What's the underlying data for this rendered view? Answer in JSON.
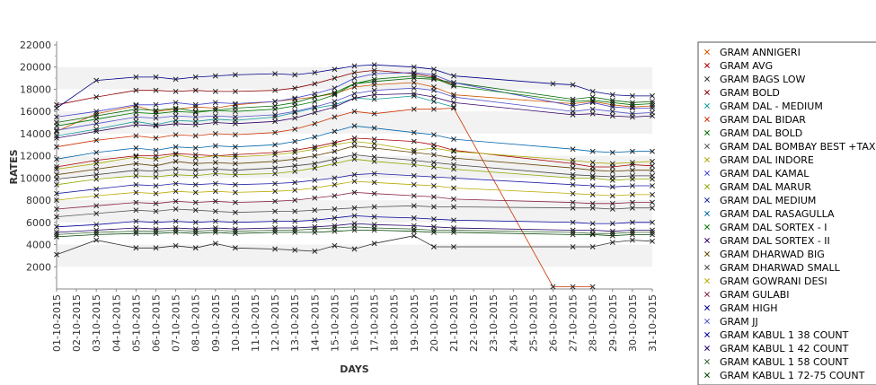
{
  "chart_data": {
    "type": "line",
    "xlabel": "DAYS",
    "ylabel": "RATES",
    "ylim": [
      0,
      22000
    ],
    "yticks": [
      2000,
      4000,
      6000,
      8000,
      10000,
      12000,
      14000,
      16000,
      18000,
      20000,
      22000
    ],
    "grid": "alternating horizontal bands",
    "legend_position": "right",
    "categories": [
      "01-10-2015",
      "02-10-2015",
      "03-10-2015",
      "04-10-2015",
      "05-10-2015",
      "06-10-2015",
      "07-10-2015",
      "08-10-2015",
      "09-10-2015",
      "10-10-2015",
      "11-10-2015",
      "12-10-2015",
      "13-10-2015",
      "14-10-2015",
      "15-10-2015",
      "16-10-2015",
      "17-10-2015",
      "18-10-2015",
      "19-10-2015",
      "20-10-2015",
      "21-10-2015",
      "22-10-2015",
      "23-10-2015",
      "24-10-2015",
      "25-10-2015",
      "26-10-2015",
      "27-10-2015",
      "28-10-2015",
      "29-10-2015",
      "30-10-2015",
      "31-10-2015"
    ],
    "series": [
      {
        "name": "GRAM ANNIGERI",
        "color": "#cc5500",
        "values": [
          14200,
          null,
          15800,
          null,
          16500,
          16000,
          16200,
          16400,
          16300,
          16600,
          null,
          16900,
          17100,
          17300,
          17600,
          18200,
          18400,
          null,
          18600,
          18200,
          17500,
          null,
          null,
          null,
          null,
          null,
          16700,
          16900,
          16600,
          16400,
          16500
        ]
      },
      {
        "name": "GRAM AVG",
        "color": "#aa0000",
        "values": [
          11000,
          null,
          11600,
          null,
          12000,
          12000,
          12200,
          12100,
          12000,
          12100,
          null,
          12300,
          12500,
          12800,
          13200,
          13600,
          13500,
          null,
          13300,
          13000,
          12500,
          null,
          null,
          null,
          null,
          null,
          11300,
          11000,
          11000,
          11200,
          11100
        ]
      },
      {
        "name": "GRAM BAGS LOW",
        "color": "#333333",
        "values": [
          3100,
          null,
          4400,
          null,
          3700,
          3700,
          3900,
          3700,
          4100,
          3700,
          null,
          3600,
          3500,
          3400,
          3900,
          3600,
          4100,
          null,
          4800,
          3800,
          3800,
          null,
          null,
          null,
          null,
          null,
          3800,
          3800,
          4200,
          4400,
          4300
        ]
      },
      {
        "name": "GRAM BOLD",
        "color": "#880000",
        "values": [
          16600,
          null,
          17300,
          null,
          17900,
          17900,
          17800,
          17900,
          17800,
          17800,
          null,
          17900,
          18100,
          18500,
          19000,
          19500,
          19700,
          null,
          19400,
          19100,
          18400,
          null,
          null,
          null,
          null,
          null,
          null,
          null,
          null,
          null,
          null
        ]
      },
      {
        "name": "GRAM DAL - MEDIUM",
        "color": "#119999",
        "values": [
          13800,
          null,
          14400,
          null,
          15100,
          14800,
          15200,
          15100,
          15300,
          15200,
          null,
          15500,
          15900,
          16300,
          16600,
          17200,
          17100,
          null,
          17400,
          16900,
          16400,
          null,
          null,
          null,
          null,
          null,
          null,
          null,
          null,
          null,
          null
        ]
      },
      {
        "name": "GRAM DAL BIDAR",
        "color": "#cc3300",
        "values": [
          12800,
          null,
          13400,
          null,
          13800,
          13600,
          13900,
          13800,
          14000,
          13900,
          null,
          14100,
          14400,
          14900,
          15500,
          16000,
          15800,
          null,
          16200,
          16200,
          16300,
          null,
          null,
          null,
          null,
          200,
          200,
          200,
          null,
          null,
          null
        ]
      },
      {
        "name": "GRAM DAL BOLD",
        "color": "#006600",
        "values": [
          15000,
          null,
          15600,
          null,
          16200,
          16100,
          16300,
          16000,
          16100,
          16300,
          null,
          16500,
          16800,
          17300,
          17700,
          18500,
          18700,
          null,
          19000,
          18900,
          18600,
          null,
          null,
          null,
          null,
          null,
          17100,
          17300,
          17000,
          16800,
          16900
        ]
      },
      {
        "name": "GRAM DAL BOMBAY BEST +TAX",
        "color": "#555555",
        "values": [
          6500,
          null,
          6800,
          null,
          7100,
          7000,
          7200,
          7100,
          7000,
          6900,
          null,
          7000,
          7000,
          7100,
          7200,
          7300,
          7400,
          null,
          7500,
          7400,
          7400,
          null,
          null,
          null,
          null,
          null,
          7300,
          7300,
          7200,
          7300,
          7300
        ]
      },
      {
        "name": "GRAM DAL INDORE",
        "color": "#aaaa00",
        "values": [
          10800,
          null,
          11300,
          null,
          11900,
          11700,
          12100,
          11800,
          12000,
          11900,
          null,
          12100,
          12300,
          12600,
          13000,
          13300,
          13100,
          null,
          12500,
          12700,
          12400,
          null,
          null,
          null,
          null,
          null,
          11600,
          11400,
          11300,
          11400,
          11500
        ]
      },
      {
        "name": "GRAM DAL KAMAL",
        "color": "#4444cc",
        "values": [
          15500,
          null,
          16000,
          null,
          16600,
          16600,
          16800,
          16600,
          16800,
          16700,
          null,
          16900,
          17200,
          17600,
          18100,
          19000,
          19400,
          null,
          19500,
          19300,
          18600,
          null,
          null,
          null,
          null,
          null,
          16500,
          16800,
          16400,
          16300,
          16300
        ]
      },
      {
        "name": "GRAM DAL MARUR",
        "color": "#88aa00",
        "values": [
          9400,
          null,
          9900,
          null,
          10200,
          10100,
          10300,
          10200,
          10400,
          10300,
          null,
          10400,
          10600,
          10900,
          11300,
          11700,
          11500,
          null,
          11200,
          11000,
          10800,
          null,
          null,
          null,
          null,
          null,
          10000,
          10000,
          9800,
          9900,
          9900
        ]
      },
      {
        "name": "GRAM DAL MEDIUM",
        "color": "#2222aa",
        "values": [
          8600,
          null,
          9000,
          null,
          9400,
          9300,
          9500,
          9400,
          9500,
          9400,
          null,
          9500,
          9600,
          9800,
          10000,
          10300,
          10400,
          null,
          10200,
          10100,
          10000,
          null,
          null,
          null,
          null,
          null,
          9400,
          9300,
          9200,
          9300,
          9300
        ]
      },
      {
        "name": "GRAM DAL RASAGULLA",
        "color": "#0066aa",
        "values": [
          11700,
          null,
          12300,
          null,
          12700,
          12500,
          12800,
          12700,
          12900,
          12800,
          null,
          13000,
          13300,
          13700,
          14200,
          14700,
          14500,
          null,
          14100,
          13900,
          13500,
          null,
          null,
          null,
          null,
          null,
          12600,
          12400,
          12300,
          12400,
          12400
        ]
      },
      {
        "name": "GRAM DAL SORTEX - I",
        "color": "#007700",
        "values": [
          14700,
          null,
          15300,
          null,
          15900,
          15800,
          16000,
          15900,
          16100,
          16000,
          null,
          16200,
          16500,
          16900,
          17500,
          18500,
          18900,
          null,
          19200,
          19000,
          18300,
          null,
          null,
          null,
          null,
          null,
          16900,
          17000,
          16800,
          16600,
          16700
        ]
      },
      {
        "name": "GRAM DAL SORTEX - II",
        "color": "#330066",
        "values": [
          13600,
          null,
          14200,
          null,
          14800,
          14700,
          14900,
          14800,
          15000,
          14900,
          null,
          15100,
          15400,
          15900,
          16400,
          17200,
          17500,
          null,
          17600,
          17300,
          16800,
          null,
          null,
          null,
          null,
          null,
          15700,
          15800,
          15600,
          15500,
          15600
        ]
      },
      {
        "name": "GRAM DHARWAD BIG",
        "color": "#664400",
        "values": [
          10300,
          null,
          10800,
          null,
          11300,
          11100,
          11500,
          11300,
          11400,
          11300,
          null,
          11500,
          11700,
          12000,
          12400,
          12900,
          12700,
          null,
          12300,
          12100,
          11800,
          null,
          null,
          null,
          null,
          null,
          10900,
          10700,
          10600,
          10700,
          10700
        ]
      },
      {
        "name": "GRAM DHARWAD SMALL",
        "color": "#444444",
        "values": [
          9900,
          null,
          10300,
          null,
          10700,
          10600,
          10800,
          10700,
          10800,
          10700,
          null,
          10900,
          11100,
          11300,
          11700,
          12100,
          11900,
          null,
          11600,
          11400,
          11200,
          null,
          null,
          null,
          null,
          null,
          10300,
          10200,
          10100,
          10200,
          10200
        ]
      },
      {
        "name": "GRAM GOWRANI DESI",
        "color": "#bbaa00",
        "values": [
          8000,
          null,
          8400,
          null,
          8700,
          8600,
          8800,
          8700,
          8800,
          8700,
          null,
          8800,
          8900,
          9100,
          9400,
          9700,
          9600,
          null,
          9400,
          9300,
          9100,
          null,
          null,
          null,
          null,
          null,
          8600,
          8500,
          8400,
          8500,
          8500
        ]
      },
      {
        "name": "GRAM GULABI",
        "color": "#882244",
        "values": [
          7200,
          null,
          7500,
          null,
          7800,
          7700,
          7900,
          7800,
          7900,
          7800,
          null,
          7900,
          8000,
          8200,
          8400,
          8700,
          8600,
          null,
          8400,
          8300,
          8100,
          null,
          null,
          null,
          null,
          null,
          7800,
          7700,
          7700,
          7800,
          7800
        ]
      },
      {
        "name": "GRAM HIGH",
        "color": "#000088",
        "values": [
          16300,
          null,
          18800,
          null,
          19100,
          19100,
          18900,
          19100,
          19200,
          19300,
          null,
          19400,
          19300,
          19500,
          19800,
          20100,
          20200,
          null,
          20000,
          19800,
          19200,
          null,
          null,
          null,
          null,
          18500,
          18400,
          17800,
          17500,
          17400,
          17400
        ]
      },
      {
        "name": "GRAM JJ",
        "color": "#5555cc",
        "values": [
          14300,
          null,
          14900,
          null,
          15500,
          15400,
          15600,
          15500,
          15600,
          15500,
          null,
          15700,
          16000,
          16400,
          16900,
          17600,
          17900,
          null,
          18100,
          17900,
          17300,
          null,
          null,
          null,
          null,
          null,
          16000,
          16200,
          16000,
          15800,
          15900
        ]
      },
      {
        "name": "GRAM KABUL 1 38 COUNT",
        "color": "#000099",
        "values": [
          5600,
          null,
          5800,
          null,
          6100,
          6000,
          6100,
          6000,
          6100,
          6000,
          null,
          6100,
          6100,
          6200,
          6400,
          6600,
          6500,
          null,
          6400,
          6300,
          6200,
          null,
          null,
          null,
          null,
          null,
          6000,
          5900,
          5900,
          6000,
          6000
        ]
      },
      {
        "name": "GRAM KABUL 1 42 COUNT",
        "color": "#220066",
        "values": [
          5100,
          null,
          5300,
          null,
          5500,
          5400,
          5500,
          5400,
          5500,
          5400,
          null,
          5500,
          5500,
          5600,
          5700,
          5900,
          5800,
          null,
          5700,
          5600,
          5500,
          null,
          null,
          null,
          null,
          null,
          5300,
          5300,
          5200,
          5300,
          5300
        ]
      },
      {
        "name": "GRAM KABUL 1 58 COUNT",
        "color": "#336633",
        "values": [
          4900,
          null,
          5100,
          null,
          5200,
          5200,
          5300,
          5200,
          5300,
          5200,
          null,
          5300,
          5300,
          5400,
          5500,
          5600,
          5500,
          null,
          5400,
          5300,
          5300,
          null,
          null,
          null,
          null,
          null,
          5100,
          5000,
          5000,
          5100,
          5100
        ]
      },
      {
        "name": "GRAM KABUL 1 72-75 COUNT",
        "color": "#004400",
        "values": [
          4700,
          null,
          4900,
          null,
          5000,
          5000,
          5100,
          5000,
          5100,
          5000,
          null,
          5100,
          5100,
          5100,
          5200,
          5300,
          5300,
          null,
          5200,
          5100,
          5100,
          null,
          null,
          null,
          null,
          null,
          4900,
          4900,
          4800,
          4900,
          4900
        ]
      }
    ]
  }
}
